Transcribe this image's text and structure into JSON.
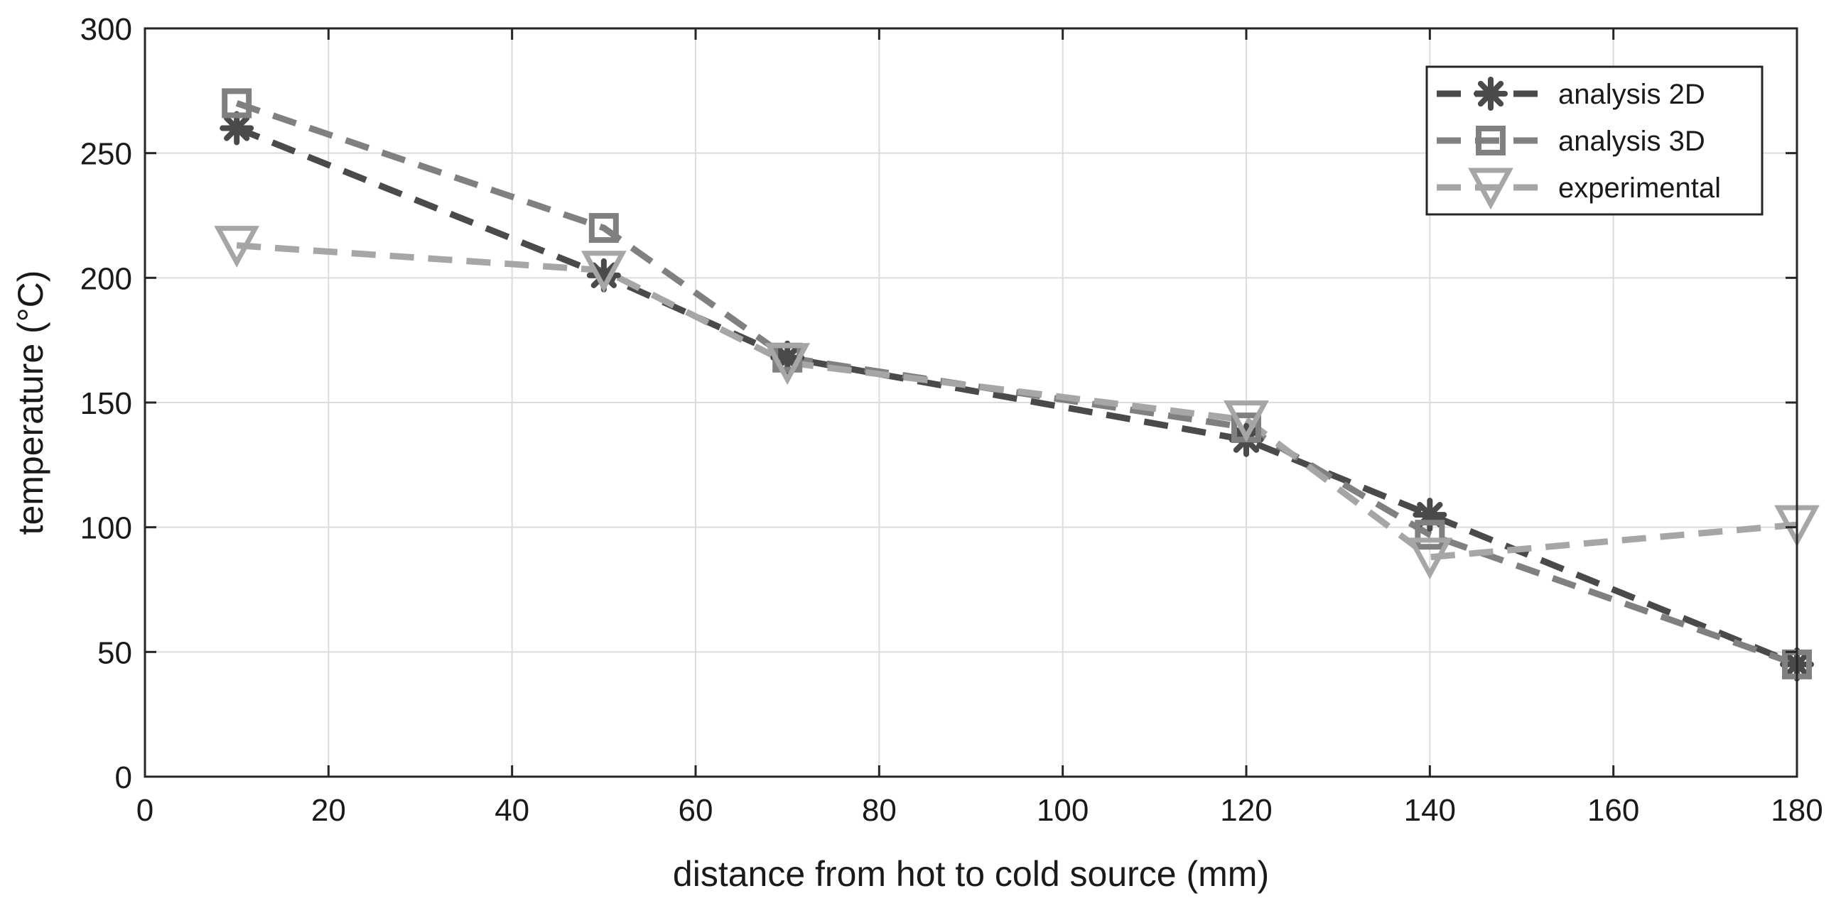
{
  "chart_data": {
    "type": "line",
    "xlabel": "distance from hot to cold source  (mm)",
    "ylabel": "temperature (°C)",
    "xlim": [
      0,
      180
    ],
    "ylim": [
      0,
      300
    ],
    "xticks": [
      0,
      20,
      40,
      60,
      80,
      100,
      120,
      140,
      160,
      180
    ],
    "yticks": [
      0,
      50,
      100,
      150,
      200,
      250,
      300
    ],
    "grid": true,
    "legend_position": "top-right",
    "series": [
      {
        "name": "analysis 2D",
        "marker": "asterisk",
        "line_style": "dashed",
        "color": "#4a4a4a",
        "x": [
          10,
          50,
          70,
          120,
          140,
          180
        ],
        "y": [
          260,
          201,
          168,
          135,
          105,
          45
        ]
      },
      {
        "name": "analysis 3D",
        "marker": "square",
        "line_style": "dashed",
        "color": "#808080",
        "x": [
          10,
          50,
          70,
          120,
          140,
          180
        ],
        "y": [
          270,
          220,
          168,
          140,
          97,
          45
        ]
      },
      {
        "name": "experimental",
        "marker": "triangle-down",
        "line_style": "dashed",
        "color": "#a6a6a6",
        "x": [
          10,
          50,
          70,
          120,
          140,
          180
        ],
        "y": [
          213,
          203,
          166,
          143,
          88,
          101
        ]
      }
    ]
  }
}
